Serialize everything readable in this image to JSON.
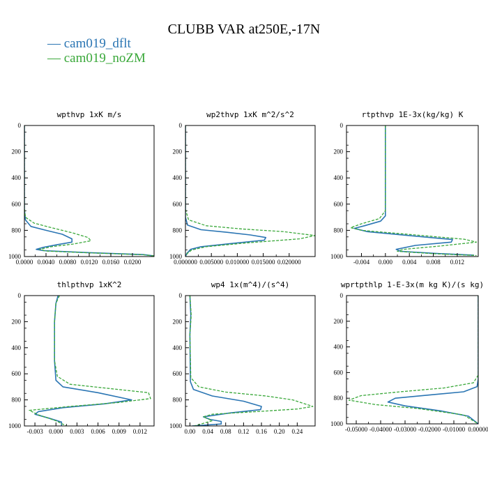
{
  "figure": {
    "title": "CLUBB VAR at250E,-17N",
    "legend": [
      {
        "label": "— cam019_dflt",
        "color": "#2a75b3"
      },
      {
        "label": "— cam019_noZM",
        "color": "#3aa83a"
      }
    ]
  },
  "chart_data": [
    {
      "type": "line",
      "title": "wpthvp   1xK m/s",
      "xlim": [
        0,
        0.024
      ],
      "ylim": [
        1000,
        0
      ],
      "xticks": [
        "0.0000",
        "0.0040",
        "0.0080",
        "0.0120",
        "0.0160",
        "0.0200"
      ],
      "xtick_values": [
        0,
        0.004,
        0.008,
        0.012,
        0.016,
        0.02
      ],
      "yticks": [
        "0",
        "200",
        "400",
        "600",
        "800",
        "1000"
      ],
      "ytick_values": [
        0,
        200,
        400,
        600,
        800,
        1000
      ],
      "series": [
        {
          "name": "cam019_dflt",
          "color": "#2a75b3",
          "dashed": false,
          "x": [
            0,
            0,
            0.0002,
            0.0012,
            0.004,
            0.007,
            0.0088,
            0.0088,
            0.006,
            0.0035,
            0.0022,
            0.0035,
            0.012,
            0.022,
            0.024
          ],
          "y": [
            0,
            640,
            720,
            770,
            800,
            830,
            865,
            890,
            910,
            930,
            945,
            955,
            970,
            985,
            995
          ]
        },
        {
          "name": "cam019_noZM",
          "color": "#3aa83a",
          "dashed": true,
          "x": [
            0,
            0,
            0.0002,
            0.0018,
            0.005,
            0.009,
            0.0118,
            0.0123,
            0.009,
            0.005,
            0.0028,
            0.004,
            0.012,
            0.022,
            0.024
          ],
          "y": [
            0,
            630,
            700,
            745,
            780,
            820,
            855,
            880,
            905,
            925,
            945,
            958,
            972,
            986,
            996
          ]
        }
      ]
    },
    {
      "type": "line",
      "title": "wp2thvp   1xK m^2/s^2",
      "xlim": [
        0,
        0.025
      ],
      "ylim": [
        1000,
        0
      ],
      "xticks": [
        "0.000000",
        "0.005000",
        "0.010000",
        "0.015000",
        "0.020000"
      ],
      "xtick_values": [
        0,
        0.005,
        0.01,
        0.015,
        0.02
      ],
      "yticks": [
        "0",
        "200",
        "400",
        "600",
        "800",
        "1000"
      ],
      "ytick_values": [
        0,
        200,
        400,
        600,
        800,
        1000
      ],
      "series": [
        {
          "name": "cam019_dflt",
          "color": "#2a75b3",
          "dashed": false,
          "x": [
            0,
            0,
            0.0004,
            0.003,
            0.008,
            0.0125,
            0.0155,
            0.0152,
            0.009,
            0.003,
            0.001,
            0.0003,
            0
          ],
          "y": [
            0,
            700,
            760,
            795,
            815,
            835,
            855,
            875,
            900,
            925,
            945,
            975,
            1000
          ]
        },
        {
          "name": "cam019_noZM",
          "color": "#3aa83a",
          "dashed": true,
          "x": [
            0,
            0,
            0.0006,
            0.004,
            0.011,
            0.019,
            0.025,
            0.022,
            0.012,
            0.004,
            0.0012,
            0.0004,
            0
          ],
          "y": [
            0,
            640,
            720,
            765,
            790,
            810,
            840,
            865,
            895,
            925,
            950,
            975,
            1000
          ]
        }
      ]
    },
    {
      "type": "line",
      "title": "rtpthvp   1E-3x(kg/kg) K",
      "xlim": [
        -0.0065,
        0.0155
      ],
      "ylim": [
        1000,
        0
      ],
      "xticks": [
        "-0.004",
        "0.000",
        "0.004",
        "0.008",
        "0.012"
      ],
      "xtick_values": [
        -0.004,
        0,
        0.004,
        0.008,
        0.012
      ],
      "yticks": [
        "0",
        "200",
        "400",
        "600",
        "800",
        "1000"
      ],
      "ytick_values": [
        0,
        200,
        400,
        600,
        800,
        1000
      ],
      "series": [
        {
          "name": "cam019_dflt",
          "color": "#2a75b3",
          "dashed": false,
          "x": [
            0,
            0,
            -0.0008,
            -0.0035,
            -0.0052,
            -0.003,
            0.004,
            0.0112,
            0.011,
            0.005,
            0.0018,
            0.0025,
            0.008,
            0.0148
          ],
          "y": [
            0,
            690,
            730,
            765,
            785,
            810,
            840,
            870,
            890,
            915,
            945,
            960,
            975,
            990
          ]
        },
        {
          "name": "cam019_noZM",
          "color": "#3aa83a",
          "dashed": true,
          "x": [
            0,
            0,
            -0.001,
            -0.004,
            -0.0058,
            -0.004,
            0.005,
            0.0132,
            0.0152,
            0.009,
            0.003,
            0.002,
            0.008,
            0.0152
          ],
          "y": [
            0,
            650,
            710,
            750,
            780,
            800,
            835,
            868,
            890,
            920,
            945,
            960,
            978,
            992
          ]
        }
      ]
    },
    {
      "type": "line",
      "title": "thlpthvp   1xK^2",
      "xlim": [
        -0.0045,
        0.014
      ],
      "ylim": [
        1000,
        0
      ],
      "xticks": [
        "-0.003",
        "0.000",
        "0.003",
        "0.006",
        "0.009",
        "0.012"
      ],
      "xtick_values": [
        -0.003,
        0,
        0.003,
        0.006,
        0.009,
        0.012
      ],
      "yticks": [
        "0",
        "200",
        "400",
        "600",
        "800",
        "1000"
      ],
      "ytick_values": [
        0,
        200,
        400,
        600,
        800,
        1000
      ],
      "series": [
        {
          "name": "cam019_dflt",
          "color": "#2a75b3",
          "dashed": false,
          "x": [
            0.0003,
            0,
            -0.0002,
            -0.0002,
            0,
            0.001,
            0.006,
            0.0108,
            0.007,
            0.001,
            -0.0025,
            -0.003,
            -0.001,
            0.0008,
            0.0008
          ],
          "y": [
            0,
            60,
            200,
            500,
            650,
            700,
            745,
            800,
            830,
            860,
            890,
            910,
            940,
            970,
            1000
          ]
        },
        {
          "name": "cam019_noZM",
          "color": "#3aa83a",
          "dashed": true,
          "x": [
            0.0005,
            0,
            -0.0002,
            -0.0002,
            0.0002,
            0.002,
            0.008,
            0.0132,
            0.0135,
            0.009,
            0.002,
            -0.0038,
            -0.0025,
            0,
            0.0015
          ],
          "y": [
            0,
            60,
            200,
            500,
            620,
            680,
            715,
            745,
            790,
            820,
            850,
            880,
            915,
            960,
            1000
          ]
        }
      ]
    },
    {
      "type": "line",
      "title": "wp4   1x(m^4)/(s^4)",
      "xlim": [
        -0.01,
        0.28
      ],
      "ylim": [
        1000,
        0
      ],
      "xticks": [
        "0.00",
        "0.04",
        "0.08",
        "0.12",
        "0.16",
        "0.20",
        "0.24"
      ],
      "xtick_values": [
        0,
        0.04,
        0.08,
        0.12,
        0.16,
        0.2,
        0.24
      ],
      "yticks": [
        "0",
        "200",
        "400",
        "600",
        "800",
        "1000"
      ],
      "ytick_values": [
        0,
        200,
        400,
        600,
        800,
        1000
      ],
      "series": [
        {
          "name": "cam019_dflt",
          "color": "#2a75b3",
          "dashed": false,
          "x": [
            0,
            0.002,
            0,
            0.001,
            0.008,
            0.05,
            0.12,
            0.16,
            0.158,
            0.09,
            0.03,
            0.045,
            0.07,
            0.07,
            0.005
          ],
          "y": [
            0,
            150,
            300,
            660,
            720,
            770,
            810,
            850,
            875,
            900,
            930,
            950,
            965,
            985,
            1000
          ]
        },
        {
          "name": "cam019_noZM",
          "color": "#3aa83a",
          "dashed": true,
          "x": [
            0,
            0.003,
            0,
            0.002,
            0.02,
            0.08,
            0.17,
            0.23,
            0.275,
            0.24,
            0.15,
            0.05,
            0.03,
            0.05,
            0.01
          ],
          "y": [
            0,
            150,
            300,
            630,
            700,
            740,
            770,
            800,
            850,
            870,
            890,
            910,
            930,
            960,
            1000
          ]
        }
      ]
    },
    {
      "type": "line",
      "title": "wprtpthlp   1-E-3x(m kg K)/(s kg)",
      "xlim": [
        -0.054,
        0
      ],
      "ylim": [
        1000,
        0
      ],
      "xticks": [
        "-0.05000",
        "-0.04000",
        "-0.03000",
        "-0.02000",
        "-0.01000",
        "0.00000"
      ],
      "xtick_values": [
        -0.05,
        -0.04,
        -0.03,
        -0.02,
        -0.01,
        0
      ],
      "yticks": [
        "0",
        "200",
        "400",
        "600",
        "800",
        "1000"
      ],
      "ytick_values": [
        0,
        200,
        400,
        600,
        800,
        1000
      ],
      "series": [
        {
          "name": "cam019_dflt",
          "color": "#2a75b3",
          "dashed": false,
          "x": [
            0,
            0,
            -0.0005,
            -0.006,
            -0.02,
            -0.034,
            -0.037,
            -0.03,
            -0.015,
            -0.004,
            0
          ],
          "y": [
            0,
            650,
            710,
            750,
            775,
            800,
            830,
            860,
            900,
            940,
            1000
          ]
        },
        {
          "name": "cam019_noZM",
          "color": "#3aa83a",
          "dashed": true,
          "x": [
            0,
            0,
            -0.002,
            -0.014,
            -0.032,
            -0.048,
            -0.053,
            -0.042,
            -0.025,
            -0.006,
            0
          ],
          "y": [
            0,
            620,
            680,
            720,
            750,
            780,
            815,
            850,
            880,
            930,
            1000
          ]
        }
      ]
    }
  ]
}
